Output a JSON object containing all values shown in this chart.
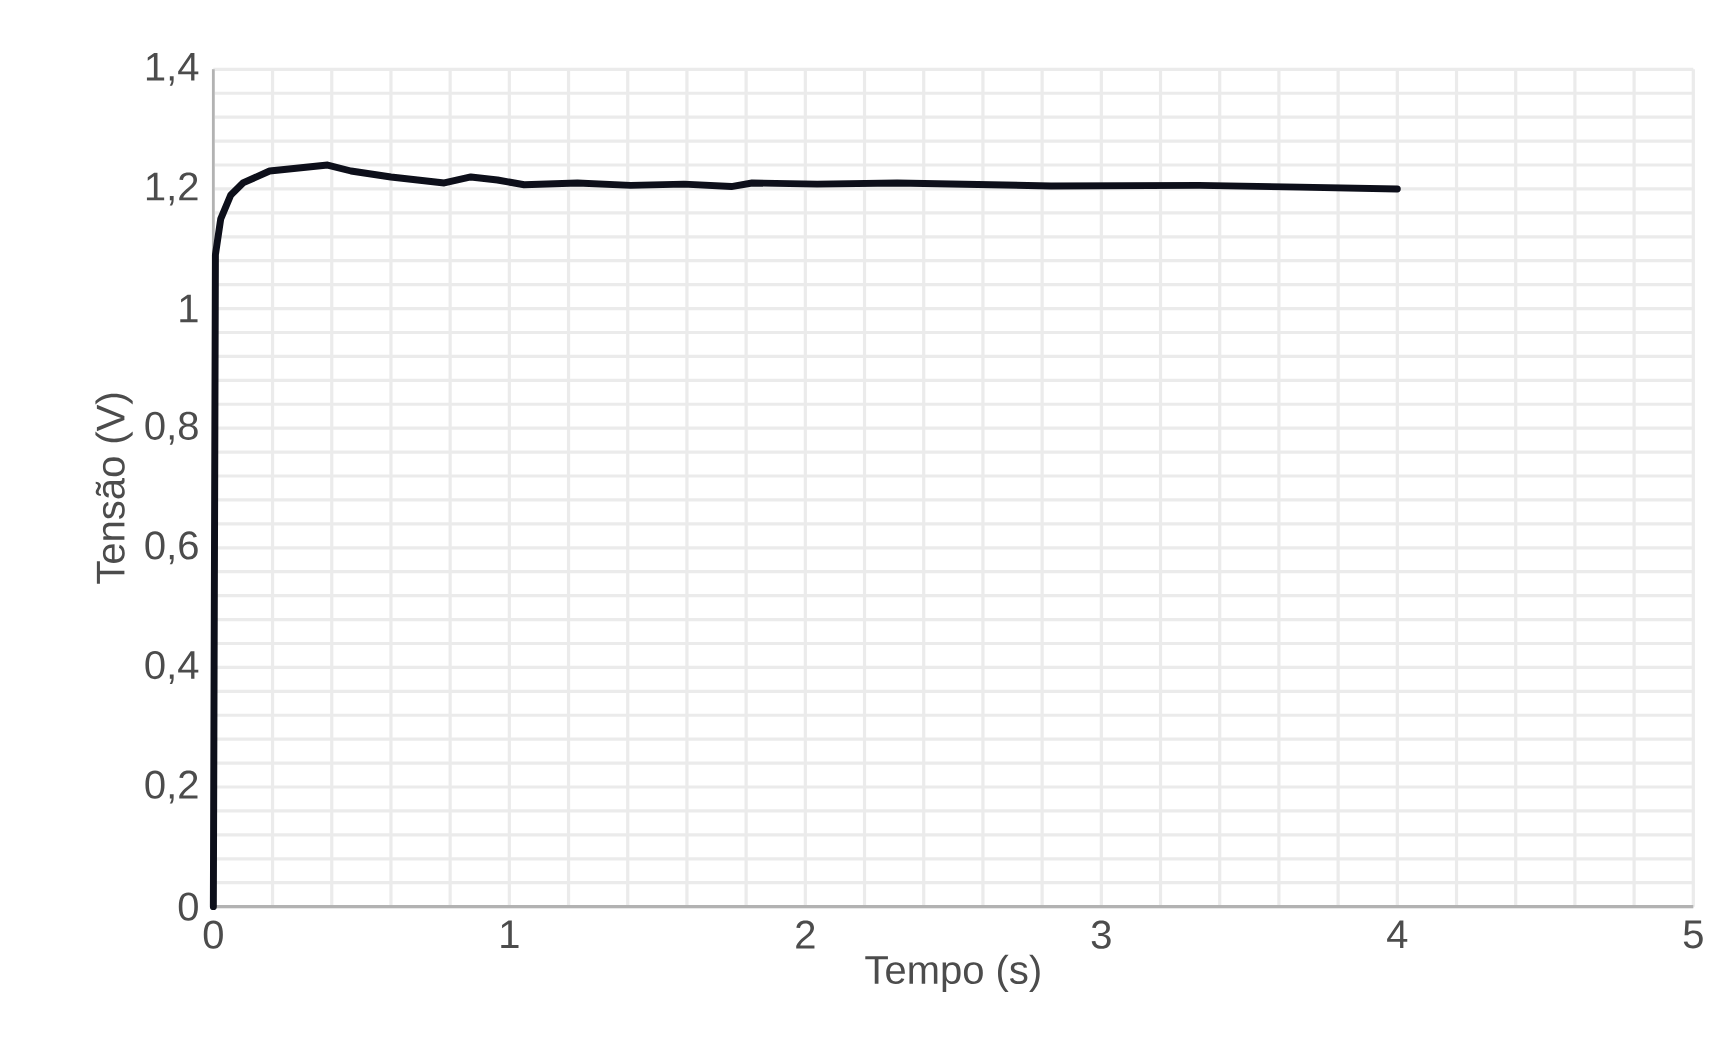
{
  "chart_data": {
    "type": "line",
    "xlabel": "Tempo (s)",
    "ylabel": "Tensão (V)",
    "x": [
      0,
      0.007,
      0.025,
      0.059,
      0.1,
      0.19,
      0.386,
      0.465,
      0.6,
      0.78,
      0.87,
      0.96,
      1.05,
      1.23,
      1.41,
      1.59,
      1.75,
      1.82,
      2.04,
      2.31,
      2.83,
      3.33,
      3.67,
      4.0
    ],
    "series": [
      {
        "color": "#0d0f1a",
        "values": [
          0,
          1.09,
          1.15,
          1.19,
          1.21,
          1.23,
          1.24,
          1.23,
          1.22,
          1.21,
          1.22,
          1.215,
          1.207,
          1.21,
          1.206,
          1.208,
          1.204,
          1.21,
          1.208,
          1.21,
          1.205,
          1.206,
          1.203,
          1.2
        ]
      }
    ],
    "xlim": [
      0,
      5
    ],
    "xticks": [
      0,
      1,
      2,
      3,
      4,
      5
    ],
    "ylim": [
      0,
      1.4
    ],
    "yticks": [
      0,
      {
        "value": 0.2,
        "label": "0,2"
      },
      {
        "value": 0.4,
        "label": "0,4"
      },
      {
        "value": 0.6,
        "label": "0,6"
      },
      {
        "value": 0.8,
        "label": "0,8"
      },
      1,
      {
        "value": 1.2,
        "label": "1,2"
      },
      {
        "value": 1.4,
        "label": "1,4"
      }
    ],
    "grid": true,
    "marker": "none",
    "line_style": "solid"
  }
}
